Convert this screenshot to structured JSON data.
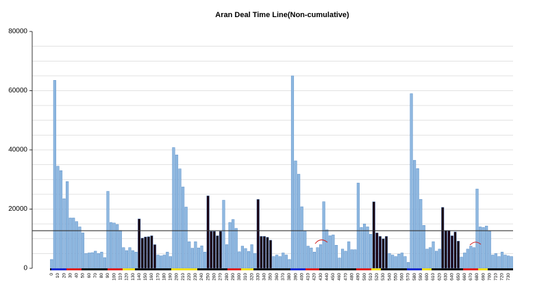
{
  "chart_data": {
    "type": "bar",
    "title": "Aran Deal Time Line(Non-cumulative)",
    "categories": [
      0,
      null,
      10,
      null,
      20,
      null,
      30,
      null,
      40,
      null,
      50,
      null,
      60,
      null,
      70,
      null,
      80,
      null,
      90,
      null,
      100,
      null,
      110,
      null,
      120,
      null,
      130,
      null,
      140,
      null,
      150,
      null,
      160,
      null,
      170,
      null,
      180,
      null,
      190,
      null,
      200,
      null,
      210,
      null,
      220,
      null,
      230,
      null,
      240,
      null,
      250,
      null,
      260,
      null,
      270,
      null,
      280,
      null,
      290,
      null,
      300,
      null,
      310,
      null,
      320,
      null,
      330,
      null,
      340,
      null,
      350,
      null,
      360,
      null,
      370,
      null,
      380,
      null,
      390,
      null,
      400,
      null,
      410,
      null,
      420,
      null,
      430,
      null,
      440,
      null,
      450,
      null,
      460,
      null,
      470,
      null,
      480,
      null,
      490,
      null,
      500,
      null,
      510,
      null,
      520,
      null,
      530,
      null,
      540,
      null,
      550,
      null,
      560,
      null,
      570,
      null,
      580,
      null,
      590,
      null,
      600,
      null,
      610,
      null,
      620,
      null,
      630,
      null,
      640,
      null,
      650,
      null,
      660,
      null,
      670,
      null,
      680,
      null,
      690,
      null,
      700,
      null,
      710,
      null,
      720,
      null,
      730,
      null
    ],
    "values": [
      3000,
      63500,
      34500,
      33000,
      23500,
      29300,
      17000,
      17000,
      15800,
      14000,
      12000,
      5000,
      5200,
      5300,
      5800,
      5000,
      5500,
      3600,
      26000,
      15500,
      15300,
      14800,
      12800,
      7000,
      6000,
      7000,
      6000,
      5500,
      16700,
      10200,
      10600,
      10700,
      11000,
      8000,
      4500,
      4200,
      4500,
      5500,
      4000,
      40800,
      38300,
      33600,
      27500,
      20700,
      9000,
      6800,
      9000,
      6900,
      7600,
      5500,
      24500,
      12500,
      12500,
      11000,
      12500,
      23000,
      8000,
      15500,
      16500,
      13500,
      5600,
      7500,
      6700,
      5700,
      8000,
      5000,
      23300,
      10800,
      10800,
      10500,
      9500,
      4000,
      4500,
      4000,
      5200,
      4500,
      3000,
      65000,
      36300,
      31800,
      20800,
      12500,
      7500,
      6900,
      5500,
      7000,
      8000,
      22500,
      13000,
      11000,
      11300,
      7800,
      3500,
      6500,
      5800,
      9000,
      6300,
      6300,
      28800,
      13800,
      15000,
      14000,
      11500,
      22500,
      12000,
      10800,
      10000,
      10800,
      5000,
      4500,
      4000,
      4800,
      5200,
      4000,
      2000,
      59000,
      36500,
      33700,
      23300,
      14500,
      6500,
      7000,
      9000,
      5800,
      6500,
      20600,
      12800,
      12800,
      11000,
      12300,
      9200,
      3800,
      5200,
      6500,
      7500,
      7000,
      26800,
      14000,
      13800,
      14300,
      12500,
      4500,
      5000,
      4000,
      5500,
      4500,
      4200,
      4000
    ],
    "color": "#8fb8e0",
    "highlight_color": "#1a0010",
    "highlight": [
      28,
      29,
      30,
      31,
      32,
      33,
      50,
      51,
      52,
      53,
      54,
      66,
      67,
      68,
      69,
      70,
      103,
      104,
      105,
      106,
      107,
      125,
      126,
      127,
      128,
      129,
      130
    ],
    "ylim": [
      0,
      80000
    ],
    "yticks": [
      0,
      20000,
      40000,
      60000,
      80000
    ],
    "ygrid": [
      5000,
      10000,
      15000,
      20000,
      25000,
      30000,
      35000,
      40000,
      45000,
      50000,
      55000,
      60000,
      65000,
      70000,
      75000
    ],
    "hline": 12700,
    "grid": true
  }
}
